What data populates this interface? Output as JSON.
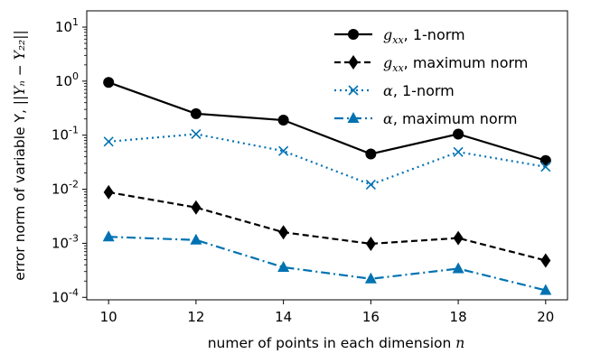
{
  "chart_data": {
    "type": "line",
    "xlabel_text": "numer of points in each dimension ",
    "xlabel_math": "n",
    "ylabel_text": "error norm of variable Y, ",
    "ylabel_math": "||Yₙ − Y₂₂||",
    "x": [
      10,
      12,
      14,
      16,
      18,
      20
    ],
    "xlim": [
      9.5,
      20.5
    ],
    "ylim": [
      9e-05,
      20
    ],
    "yscale": "log",
    "xticks": [
      "10",
      "12",
      "14",
      "16",
      "18",
      "20"
    ],
    "yticks": [
      {
        "value": 10,
        "base": "10",
        "exp": "1"
      },
      {
        "value": 1,
        "base": "10",
        "exp": "0"
      },
      {
        "value": 0.1,
        "base": "10",
        "exp": "-1"
      },
      {
        "value": 0.01,
        "base": "10",
        "exp": "-2"
      },
      {
        "value": 0.001,
        "base": "10",
        "exp": "-3"
      },
      {
        "value": 0.0001,
        "base": "10",
        "exp": "-4"
      }
    ],
    "grid": false,
    "legend_position": "top-right",
    "series": [
      {
        "name_math": "g",
        "name_sub": "xx",
        "name_text": ", 1-norm",
        "color": "#000000",
        "marker": "circle",
        "dash": "solid",
        "values": [
          0.95,
          0.25,
          0.19,
          0.045,
          0.105,
          0.034
        ]
      },
      {
        "name_math": "g",
        "name_sub": "xx",
        "name_text": ", maximum norm",
        "color": "#000000",
        "marker": "diamond",
        "dash": "dashed",
        "values": [
          0.0088,
          0.0046,
          0.0016,
          0.00098,
          0.00125,
          0.00048
        ]
      },
      {
        "name_math": "α",
        "name_sub": "",
        "name_text": ", 1-norm",
        "color": "#0072b2",
        "marker": "x",
        "dash": "dotted",
        "values": [
          0.076,
          0.105,
          0.051,
          0.0122,
          0.049,
          0.026
        ]
      },
      {
        "name_math": "α",
        "name_sub": "",
        "name_text": ", maximum norm",
        "color": "#0072b2",
        "marker": "triangle",
        "dash": "dashdot",
        "values": [
          0.00132,
          0.00115,
          0.00036,
          0.00022,
          0.00034,
          0.000135
        ]
      }
    ]
  }
}
